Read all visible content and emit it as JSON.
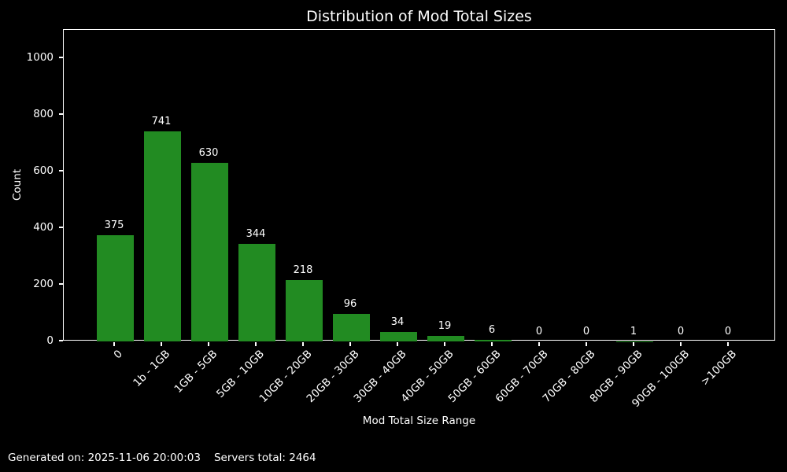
{
  "chart_data": {
    "type": "bar",
    "title": "Distribution of Mod Total Sizes",
    "xlabel": "Mod Total Size Range",
    "ylabel": "Count",
    "categories": [
      "0",
      "1b - 1GB",
      "1GB - 5GB",
      "5GB - 10GB",
      "10GB - 20GB",
      "20GB - 30GB",
      "30GB - 40GB",
      "40GB - 50GB",
      "50GB - 60GB",
      "60GB - 70GB",
      "70GB - 80GB",
      "80GB - 90GB",
      "90GB - 100GB",
      ">100GB"
    ],
    "values": [
      375,
      741,
      630,
      344,
      218,
      96,
      34,
      19,
      6,
      0,
      0,
      1,
      0,
      0
    ],
    "bar_value_labels": [
      "375",
      "741",
      "630",
      "344",
      "218",
      "96",
      "34",
      "19",
      "6",
      "0",
      "0",
      "1",
      "0",
      "0"
    ],
    "yticks": [
      0,
      200,
      400,
      600,
      800,
      1000
    ],
    "ylim": [
      0,
      1100
    ],
    "grid": false,
    "legend": null,
    "colors": {
      "bar": "#228B22",
      "background": "#000000",
      "text": "#ffffff",
      "spine": "#ffffff"
    }
  },
  "footer": {
    "generated": "Generated on: 2025-11-06 20:00:03",
    "servers_total": "Servers total: 2464"
  }
}
